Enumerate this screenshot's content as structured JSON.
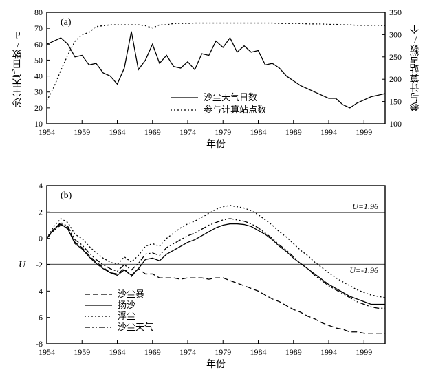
{
  "global": {
    "background_color": "#ffffff",
    "axis_color": "#000000",
    "text_color": "#000000",
    "font_family": "SimSun",
    "tick_font_size": 12,
    "label_font_size": 14
  },
  "chart_a": {
    "panel_label": "(a)",
    "type": "line-dual-axis",
    "x": {
      "label": "年份",
      "ticks": [
        1954,
        1959,
        1964,
        1969,
        1974,
        1979,
        1984,
        1989,
        1994,
        1999
      ],
      "min": 1954,
      "max": 2002
    },
    "y_left": {
      "label": "沙尘天气日数/d",
      "ticks": [
        10,
        20,
        30,
        40,
        50,
        60,
        70,
        80
      ],
      "min": 10,
      "max": 80
    },
    "y_right": {
      "label": "参与计算站点数/个",
      "ticks": [
        100,
        150,
        200,
        250,
        300,
        350
      ],
      "min": 100,
      "max": 350
    },
    "legend": [
      {
        "label": "沙尘天气日数",
        "style": "solid"
      },
      {
        "label": "参与计算站点数",
        "style": "dotted"
      }
    ],
    "series_days": {
      "color": "#000000",
      "line_width": 1.3,
      "dash": "none",
      "years": [
        1954,
        1955,
        1956,
        1957,
        1958,
        1959,
        1960,
        1961,
        1962,
        1963,
        1964,
        1965,
        1966,
        1967,
        1968,
        1969,
        1970,
        1971,
        1972,
        1973,
        1974,
        1975,
        1976,
        1977,
        1978,
        1979,
        1980,
        1981,
        1982,
        1983,
        1984,
        1985,
        1986,
        1987,
        1988,
        1989,
        1990,
        1991,
        1992,
        1993,
        1994,
        1995,
        1996,
        1997,
        1998,
        1999,
        2000,
        2001,
        2002
      ],
      "values": [
        60,
        62,
        64,
        60,
        52,
        53,
        47,
        48,
        42,
        40,
        35,
        45,
        68,
        44,
        50,
        60,
        48,
        53,
        46,
        45,
        49,
        44,
        54,
        53,
        62,
        58,
        64,
        55,
        59,
        55,
        56,
        47,
        48,
        45,
        40,
        37,
        34,
        32,
        30,
        28,
        26,
        26,
        22,
        20,
        23,
        25,
        27,
        28,
        29
      ]
    },
    "series_stations": {
      "color": "#000000",
      "line_width": 1.3,
      "dash": "2,3",
      "years": [
        1954,
        1955,
        1956,
        1957,
        1958,
        1959,
        1960,
        1961,
        1962,
        1963,
        1964,
        1965,
        1966,
        1967,
        1968,
        1969,
        1970,
        1971,
        1972,
        1973,
        1974,
        1975,
        1976,
        1977,
        1978,
        1979,
        1980,
        1981,
        1982,
        1983,
        1984,
        1985,
        1986,
        1987,
        1988,
        1989,
        1990,
        1991,
        1992,
        1993,
        1994,
        1995,
        1996,
        1997,
        1998,
        1999,
        2000,
        2001,
        2002
      ],
      "values": [
        152,
        182,
        220,
        255,
        285,
        300,
        305,
        318,
        320,
        322,
        322,
        322,
        322,
        322,
        320,
        315,
        322,
        322,
        325,
        325,
        325,
        326,
        326,
        326,
        326,
        326,
        326,
        326,
        326,
        326,
        326,
        326,
        326,
        325,
        325,
        325,
        325,
        324,
        324,
        324,
        323,
        323,
        322,
        322,
        321,
        321,
        321,
        321,
        320
      ]
    }
  },
  "chart_b": {
    "panel_label": "(b)",
    "type": "line",
    "x": {
      "label": "年份",
      "ticks": [
        1954,
        1959,
        1964,
        1969,
        1974,
        1979,
        1984,
        1989,
        1994,
        1999
      ],
      "min": 1954,
      "max": 2002
    },
    "y": {
      "label": "U",
      "label_style": "italic",
      "ticks": [
        -8,
        -6,
        -4,
        -2,
        0,
        2,
        4
      ],
      "min": -8,
      "max": 4
    },
    "ref_lines": [
      {
        "value": 1.96,
        "label": "U=1.96",
        "color": "#000000",
        "line_width": 0.7
      },
      {
        "value": -1.96,
        "label": "U=-1.96",
        "color": "#000000",
        "line_width": 0.7
      }
    ],
    "legend": [
      {
        "label": "沙尘暴",
        "dash": "8,4"
      },
      {
        "label": "扬沙",
        "dash": "none"
      },
      {
        "label": "浮尘",
        "dash": "2,3"
      },
      {
        "label": "沙尘天气",
        "dash": "8,3,2,3,2,3"
      }
    ],
    "series": [
      {
        "name": "沙尘暴",
        "dash": "8,4",
        "color": "#000000",
        "line_width": 1.3,
        "years": [
          1954,
          1955,
          1956,
          1957,
          1958,
          1959,
          1960,
          1961,
          1962,
          1963,
          1964,
          1965,
          1966,
          1967,
          1968,
          1969,
          1970,
          1971,
          1972,
          1973,
          1974,
          1975,
          1976,
          1977,
          1978,
          1979,
          1980,
          1981,
          1982,
          1983,
          1984,
          1985,
          1986,
          1987,
          1988,
          1989,
          1990,
          1991,
          1992,
          1993,
          1994,
          1995,
          1996,
          1997,
          1998,
          1999,
          2000,
          2001,
          2002
        ],
        "values": [
          0,
          0.6,
          1.0,
          0.8,
          -0.3,
          -0.7,
          -1.3,
          -1.8,
          -2.2,
          -2.6,
          -2.7,
          -2.3,
          -2.9,
          -2.3,
          -2.7,
          -2.7,
          -3.0,
          -3.0,
          -3.0,
          -3.1,
          -3.0,
          -3.0,
          -3.0,
          -3.1,
          -3.0,
          -3.0,
          -3.2,
          -3.4,
          -3.6,
          -3.8,
          -4.0,
          -4.3,
          -4.6,
          -4.8,
          -5.1,
          -5.4,
          -5.6,
          -5.9,
          -6.1,
          -6.4,
          -6.6,
          -6.8,
          -6.9,
          -7.1,
          -7.1,
          -7.2,
          -7.2,
          -7.2,
          -7.2
        ]
      },
      {
        "name": "扬沙",
        "dash": "none",
        "color": "#000000",
        "line_width": 1.3,
        "years": [
          1954,
          1955,
          1956,
          1957,
          1958,
          1959,
          1960,
          1961,
          1962,
          1963,
          1964,
          1965,
          1966,
          1967,
          1968,
          1969,
          1970,
          1971,
          1972,
          1973,
          1974,
          1975,
          1976,
          1977,
          1978,
          1979,
          1980,
          1981,
          1982,
          1983,
          1984,
          1985,
          1986,
          1987,
          1988,
          1989,
          1990,
          1991,
          1992,
          1993,
          1994,
          1995,
          1996,
          1997,
          1998,
          1999,
          2000,
          2001,
          2002
        ],
        "values": [
          0,
          0.7,
          1.1,
          0.7,
          -0.4,
          -0.8,
          -1.4,
          -1.9,
          -2.3,
          -2.6,
          -2.8,
          -2.4,
          -2.8,
          -2.3,
          -1.6,
          -1.5,
          -1.7,
          -1.2,
          -0.9,
          -0.6,
          -0.3,
          -0.1,
          0.2,
          0.5,
          0.8,
          1.0,
          1.1,
          1.1,
          1.05,
          0.9,
          0.6,
          0.3,
          -0.1,
          -0.6,
          -1.0,
          -1.5,
          -1.9,
          -2.3,
          -2.7,
          -3.1,
          -3.5,
          -3.8,
          -4.1,
          -4.4,
          -4.6,
          -4.8,
          -5.0,
          -5.0,
          -5.0
        ]
      },
      {
        "name": "浮尘",
        "dash": "2,3",
        "color": "#000000",
        "line_width": 1.3,
        "years": [
          1954,
          1955,
          1956,
          1957,
          1958,
          1959,
          1960,
          1961,
          1962,
          1963,
          1964,
          1965,
          1966,
          1967,
          1968,
          1969,
          1970,
          1971,
          1972,
          1973,
          1974,
          1975,
          1976,
          1977,
          1978,
          1979,
          1980,
          1981,
          1982,
          1983,
          1984,
          1985,
          1986,
          1987,
          1988,
          1989,
          1990,
          1991,
          1992,
          1993,
          1994,
          1995,
          1996,
          1997,
          1998,
          1999,
          2000,
          2001,
          2002
        ],
        "values": [
          0,
          0.9,
          1.5,
          1.2,
          0.3,
          0.0,
          -0.6,
          -1.1,
          -1.5,
          -1.8,
          -2.0,
          -1.4,
          -1.8,
          -1.3,
          -0.6,
          -0.4,
          -0.6,
          0.0,
          0.4,
          0.8,
          1.1,
          1.3,
          1.6,
          1.9,
          2.2,
          2.4,
          2.5,
          2.4,
          2.3,
          2.1,
          1.8,
          1.4,
          1.0,
          0.5,
          0.1,
          -0.4,
          -0.9,
          -1.3,
          -1.8,
          -2.2,
          -2.6,
          -3.0,
          -3.3,
          -3.6,
          -3.9,
          -4.1,
          -4.3,
          -4.4,
          -4.5
        ]
      },
      {
        "name": "沙尘天气",
        "dash": "8,3,2,3,2,3",
        "color": "#000000",
        "line_width": 1.3,
        "years": [
          1954,
          1955,
          1956,
          1957,
          1958,
          1959,
          1960,
          1961,
          1962,
          1963,
          1964,
          1965,
          1966,
          1967,
          1968,
          1969,
          1970,
          1971,
          1972,
          1973,
          1974,
          1975,
          1976,
          1977,
          1978,
          1979,
          1980,
          1981,
          1982,
          1983,
          1984,
          1985,
          1986,
          1987,
          1988,
          1989,
          1990,
          1991,
          1992,
          1993,
          1994,
          1995,
          1996,
          1997,
          1998,
          1999,
          2000,
          2001,
          2002
        ],
        "values": [
          0,
          0.7,
          1.2,
          0.9,
          -0.1,
          -0.5,
          -1.1,
          -1.6,
          -2.0,
          -2.3,
          -2.5,
          -2.0,
          -2.4,
          -1.9,
          -1.2,
          -1.1,
          -1.3,
          -0.7,
          -0.4,
          -0.1,
          0.2,
          0.4,
          0.7,
          1.0,
          1.2,
          1.4,
          1.5,
          1.4,
          1.3,
          1.1,
          0.8,
          0.4,
          0.0,
          -0.5,
          -0.9,
          -1.4,
          -1.9,
          -2.3,
          -2.8,
          -3.2,
          -3.6,
          -3.9,
          -4.2,
          -4.5,
          -4.8,
          -5.0,
          -5.2,
          -5.3,
          -5.3
        ]
      }
    ]
  }
}
